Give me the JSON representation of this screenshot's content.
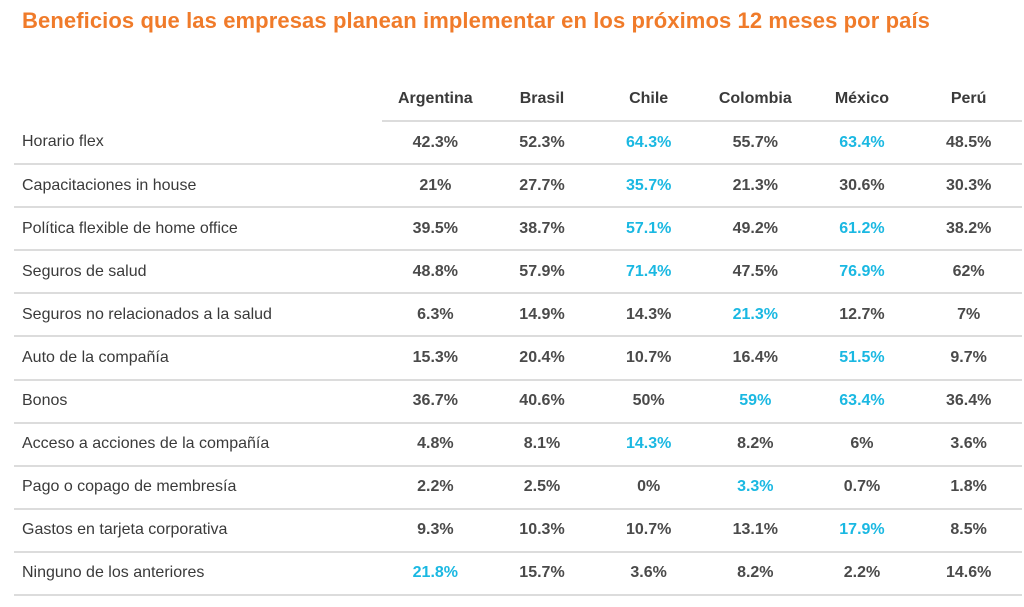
{
  "title": "Beneficios que las empresas planean implementar en los próximos 12 meses por país",
  "colors": {
    "title": "#f07b2a",
    "highlight": "#1ab8e2",
    "text": "#3a3a3a",
    "rule": "#dcdcdc"
  },
  "chart_data": {
    "type": "table",
    "title": "Beneficios que las empresas planean implementar en los próximos 12 meses por país",
    "columns": [
      "Argentina",
      "Brasil",
      "Chile",
      "Colombia",
      "México",
      "Perú"
    ],
    "rows": [
      {
        "label": "Horario flex",
        "values": [
          "42.3%",
          "52.3%",
          "64.3%",
          "55.7%",
          "63.4%",
          "48.5%"
        ],
        "highlight": [
          false,
          false,
          true,
          false,
          true,
          false
        ]
      },
      {
        "label": "Capacitaciones in house",
        "values": [
          "21%",
          "27.7%",
          "35.7%",
          "21.3%",
          "30.6%",
          "30.3%"
        ],
        "highlight": [
          false,
          false,
          true,
          false,
          false,
          false
        ]
      },
      {
        "label": "Política flexible de home office",
        "values": [
          "39.5%",
          "38.7%",
          "57.1%",
          "49.2%",
          "61.2%",
          "38.2%"
        ],
        "highlight": [
          false,
          false,
          true,
          false,
          true,
          false
        ]
      },
      {
        "label": "Seguros de salud",
        "values": [
          "48.8%",
          "57.9%",
          "71.4%",
          "47.5%",
          "76.9%",
          "62%"
        ],
        "highlight": [
          false,
          false,
          true,
          false,
          true,
          false
        ]
      },
      {
        "label": "Seguros no relacionados a la salud",
        "values": [
          "6.3%",
          "14.9%",
          "14.3%",
          "21.3%",
          "12.7%",
          "7%"
        ],
        "highlight": [
          false,
          false,
          false,
          true,
          false,
          false
        ]
      },
      {
        "label": "Auto de la compañía",
        "values": [
          "15.3%",
          "20.4%",
          "10.7%",
          "16.4%",
          "51.5%",
          "9.7%"
        ],
        "highlight": [
          false,
          false,
          false,
          false,
          true,
          false
        ]
      },
      {
        "label": "Bonos",
        "values": [
          "36.7%",
          "40.6%",
          "50%",
          "59%",
          "63.4%",
          "36.4%"
        ],
        "highlight": [
          false,
          false,
          false,
          true,
          true,
          false
        ]
      },
      {
        "label": "Acceso a acciones de la compañía",
        "values": [
          "4.8%",
          "8.1%",
          "14.3%",
          "8.2%",
          "6%",
          "3.6%"
        ],
        "highlight": [
          false,
          false,
          true,
          false,
          false,
          false
        ]
      },
      {
        "label": "Pago o copago de membresía",
        "values": [
          "2.2%",
          "2.5%",
          "0%",
          "3.3%",
          "0.7%",
          "1.8%"
        ],
        "highlight": [
          false,
          false,
          false,
          true,
          false,
          false
        ]
      },
      {
        "label": "Gastos en tarjeta corporativa",
        "values": [
          "9.3%",
          "10.3%",
          "10.7%",
          "13.1%",
          "17.9%",
          "8.5%"
        ],
        "highlight": [
          false,
          false,
          false,
          false,
          true,
          false
        ]
      },
      {
        "label": "Ninguno de los anteriores",
        "values": [
          "21.8%",
          "15.7%",
          "3.6%",
          "8.2%",
          "2.2%",
          "14.6%"
        ],
        "highlight": [
          true,
          false,
          false,
          false,
          false,
          false
        ]
      }
    ]
  }
}
